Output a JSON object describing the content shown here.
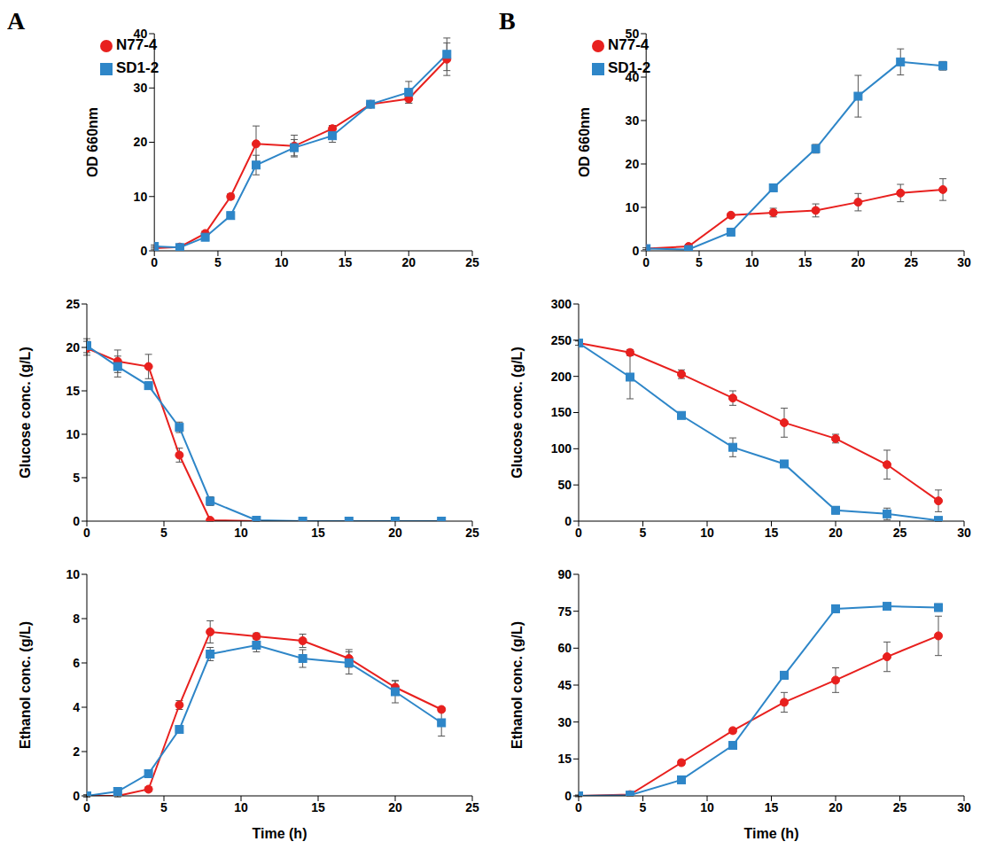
{
  "chart_data": [
    {
      "annotation": "A",
      "type": "line",
      "ylabel": "OD 660nm",
      "x": [
        0,
        2,
        4,
        6,
        8,
        11,
        14,
        17,
        20,
        23
      ],
      "xlim": [
        0,
        25
      ],
      "xticks": [
        0,
        5,
        10,
        15,
        20,
        25
      ],
      "ylim": [
        0,
        40
      ],
      "yticks": [
        0,
        10,
        20,
        30,
        40
      ],
      "legend": "upper left",
      "series": [
        {
          "name": "N77-4",
          "color": "#e8201e",
          "marker": "circle",
          "values": [
            0.5,
            0.7,
            3.2,
            10,
            19.7,
            19.3,
            22.5,
            27,
            28,
            35.3
          ],
          "errors": [
            0.3,
            0.2,
            0.4,
            0.5,
            3.3,
            2,
            0.6,
            0.6,
            0.8,
            3
          ]
        },
        {
          "name": "SD1-2",
          "color": "#2e86c8",
          "marker": "square",
          "values": [
            0.8,
            0.6,
            2.5,
            6.5,
            15.8,
            19,
            21.2,
            27,
            29.2,
            36.2
          ],
          "errors": [
            0.3,
            0.2,
            0.3,
            0.5,
            1.8,
            1.5,
            1.2,
            0.6,
            2,
            3
          ]
        }
      ]
    },
    {
      "annotation": "B",
      "type": "line",
      "ylabel": "OD 660nm",
      "x": [
        0,
        4,
        8,
        12,
        16,
        20,
        24,
        28
      ],
      "xlim": [
        0,
        30
      ],
      "xticks": [
        0,
        5,
        10,
        15,
        20,
        25,
        30
      ],
      "ylim": [
        0,
        50
      ],
      "yticks": [
        0,
        10,
        20,
        30,
        40,
        50
      ],
      "legend": "upper left",
      "series": [
        {
          "name": "N77-4",
          "color": "#e8201e",
          "marker": "circle",
          "values": [
            0.5,
            1,
            8.2,
            8.8,
            9.3,
            11.2,
            13.3,
            14.1
          ],
          "errors": [
            0.2,
            0.3,
            0.5,
            1,
            1.5,
            2,
            2,
            2.5
          ]
        },
        {
          "name": "SD1-2",
          "color": "#2e86c8",
          "marker": "square",
          "values": [
            0.5,
            0.3,
            4.3,
            14.5,
            23.5,
            35.6,
            43.5,
            42.6
          ],
          "errors": [
            0.2,
            0.2,
            0.4,
            0.5,
            1,
            4.8,
            3,
            1
          ]
        }
      ]
    },
    {
      "type": "line",
      "ylabel": "Glucose conc. (g/L)",
      "x": [
        0,
        2,
        4,
        6,
        8,
        11,
        14,
        17,
        20,
        23
      ],
      "xlim": [
        0,
        25
      ],
      "xticks": [
        0,
        5,
        10,
        15,
        20,
        25
      ],
      "ylim": [
        0,
        25
      ],
      "yticks": [
        0,
        5,
        10,
        15,
        20,
        25
      ],
      "series": [
        {
          "name": "N77-4",
          "color": "#e8201e",
          "marker": "circle",
          "values": [
            19.9,
            18.4,
            17.8,
            7.6,
            0.1,
            0,
            0,
            0,
            0,
            0
          ],
          "errors": [
            0.8,
            1.3,
            1.4,
            0.8,
            0.1,
            0,
            0,
            0,
            0,
            0
          ]
        },
        {
          "name": "SD1-2",
          "color": "#2e86c8",
          "marker": "square",
          "values": [
            20.2,
            17.8,
            15.6,
            10.8,
            2.3,
            0.1,
            0,
            0,
            0,
            0
          ],
          "errors": [
            0.8,
            1.2,
            0.4,
            0.6,
            0.5,
            0.1,
            0,
            0,
            0,
            0
          ]
        }
      ]
    },
    {
      "type": "line",
      "ylabel": "Glucose conc. (g/L)",
      "x": [
        0,
        4,
        8,
        12,
        16,
        20,
        24,
        28
      ],
      "xlim": [
        0,
        30
      ],
      "xticks": [
        0,
        5,
        10,
        15,
        20,
        25,
        30
      ],
      "ylim": [
        0,
        300
      ],
      "yticks": [
        0,
        50,
        100,
        150,
        200,
        250,
        300
      ],
      "series": [
        {
          "name": "N77-4",
          "color": "#e8201e",
          "marker": "circle",
          "values": [
            246,
            233,
            203,
            170,
            136,
            114,
            78,
            28
          ],
          "errors": [
            3,
            4,
            6,
            10,
            20,
            6,
            20,
            15
          ]
        },
        {
          "name": "SD1-2",
          "color": "#2e86c8",
          "marker": "square",
          "values": [
            246,
            199,
            146,
            102,
            79,
            15,
            10,
            1
          ],
          "errors": [
            3,
            30,
            3,
            13,
            4,
            5,
            8,
            1
          ]
        }
      ]
    },
    {
      "type": "line",
      "xlabel": "Time (h)",
      "ylabel": "Ethanol conc. (g/L)",
      "x": [
        0,
        2,
        4,
        6,
        8,
        11,
        14,
        17,
        20,
        23
      ],
      "xlim": [
        0,
        25
      ],
      "xticks": [
        0,
        5,
        10,
        15,
        20,
        25
      ],
      "ylim": [
        0,
        10
      ],
      "yticks": [
        0,
        2,
        4,
        6,
        8,
        10
      ],
      "series": [
        {
          "name": "N77-4",
          "color": "#e8201e",
          "marker": "circle",
          "values": [
            0,
            0,
            0.3,
            4.1,
            7.4,
            7.2,
            7,
            6.2,
            4.9,
            3.9
          ],
          "errors": [
            0.05,
            0.05,
            0.1,
            0.2,
            0.5,
            0.15,
            0.3,
            0.4,
            0.3,
            0.1
          ]
        },
        {
          "name": "SD1-2",
          "color": "#2e86c8",
          "marker": "square",
          "values": [
            0,
            0.2,
            1,
            3,
            6.4,
            6.8,
            6.2,
            6,
            4.7,
            3.3
          ],
          "errors": [
            0.05,
            0.05,
            0.1,
            0.1,
            0.3,
            0.3,
            0.4,
            0.5,
            0.5,
            0.6
          ]
        }
      ]
    },
    {
      "type": "line",
      "xlabel": "Time (h)",
      "ylabel": "Ethanol conc. (g/L)",
      "x": [
        0,
        4,
        8,
        12,
        16,
        20,
        24,
        28
      ],
      "xlim": [
        0,
        30
      ],
      "xticks": [
        0,
        5,
        10,
        15,
        20,
        25,
        30
      ],
      "ylim": [
        0,
        90
      ],
      "yticks": [
        0,
        15,
        30,
        45,
        60,
        75,
        90
      ],
      "series": [
        {
          "name": "N77-4",
          "color": "#e8201e",
          "marker": "circle",
          "values": [
            0,
            0.5,
            13.5,
            26.5,
            38,
            47,
            56.5,
            65
          ],
          "errors": [
            0.3,
            0.3,
            1,
            1,
            4,
            5,
            6,
            8
          ]
        },
        {
          "name": "SD1-2",
          "color": "#2e86c8",
          "marker": "square",
          "values": [
            0,
            0.3,
            6.5,
            20.5,
            49,
            76,
            77,
            76.5
          ],
          "errors": [
            0.3,
            0.3,
            0.5,
            1,
            1.5,
            1.5,
            1,
            1.5
          ]
        }
      ]
    }
  ]
}
